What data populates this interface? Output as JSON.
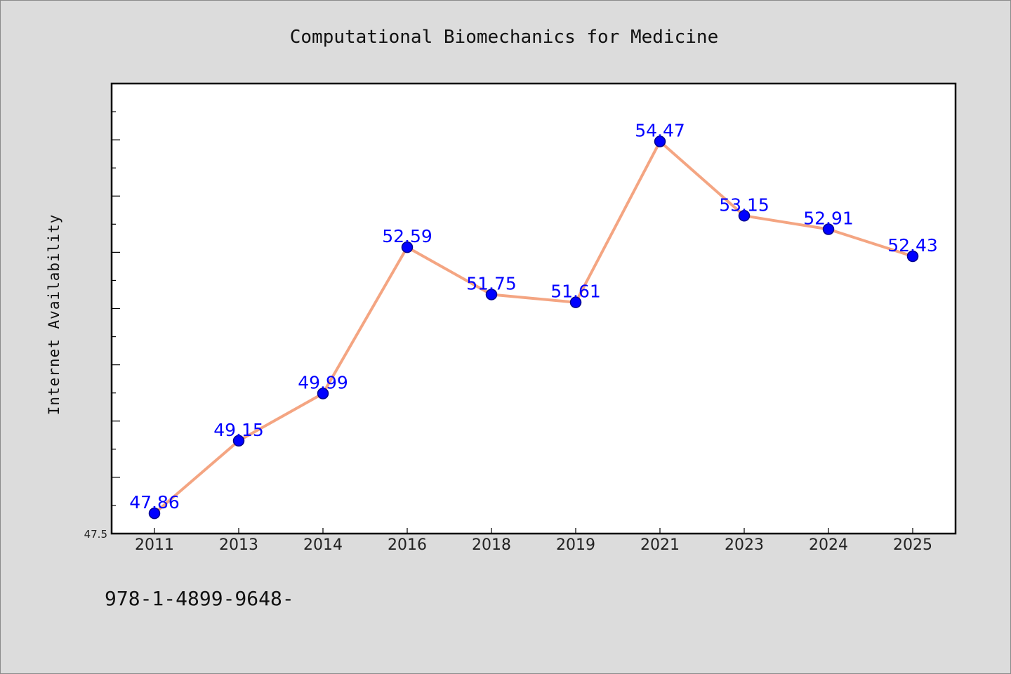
{
  "chart_data": {
    "type": "line",
    "title": "Computational Biomechanics for Medicine",
    "xlabel": "",
    "ylabel": "Internet Availability",
    "categories": [
      "2011",
      "2013",
      "2014",
      "2016",
      "2018",
      "2019",
      "2021",
      "2023",
      "2024",
      "2025"
    ],
    "values": [
      47.86,
      49.15,
      49.99,
      52.59,
      51.75,
      51.61,
      54.47,
      53.15,
      52.91,
      52.43
    ],
    "data_labels": [
      "47.86",
      "49.15",
      "49.99",
      "52.59",
      "51.75",
      "51.61",
      "54.47",
      "53.15",
      "52.91",
      "52.43"
    ],
    "ylim": [
      47.5,
      55.5
    ],
    "y_tick_labels": [
      "47.5"
    ],
    "y_tick_values": [
      47.5
    ],
    "y_minor_step": 0.5,
    "grid": false,
    "colors": {
      "line": "#f4a582",
      "marker_fill": "#0000ff",
      "marker_edge": "#00008b",
      "data_label": "#0000ff",
      "background": "#dcdcdc",
      "plot_area": "#ffffff"
    }
  },
  "footer": {
    "text": "978-1-4899-9648-"
  }
}
